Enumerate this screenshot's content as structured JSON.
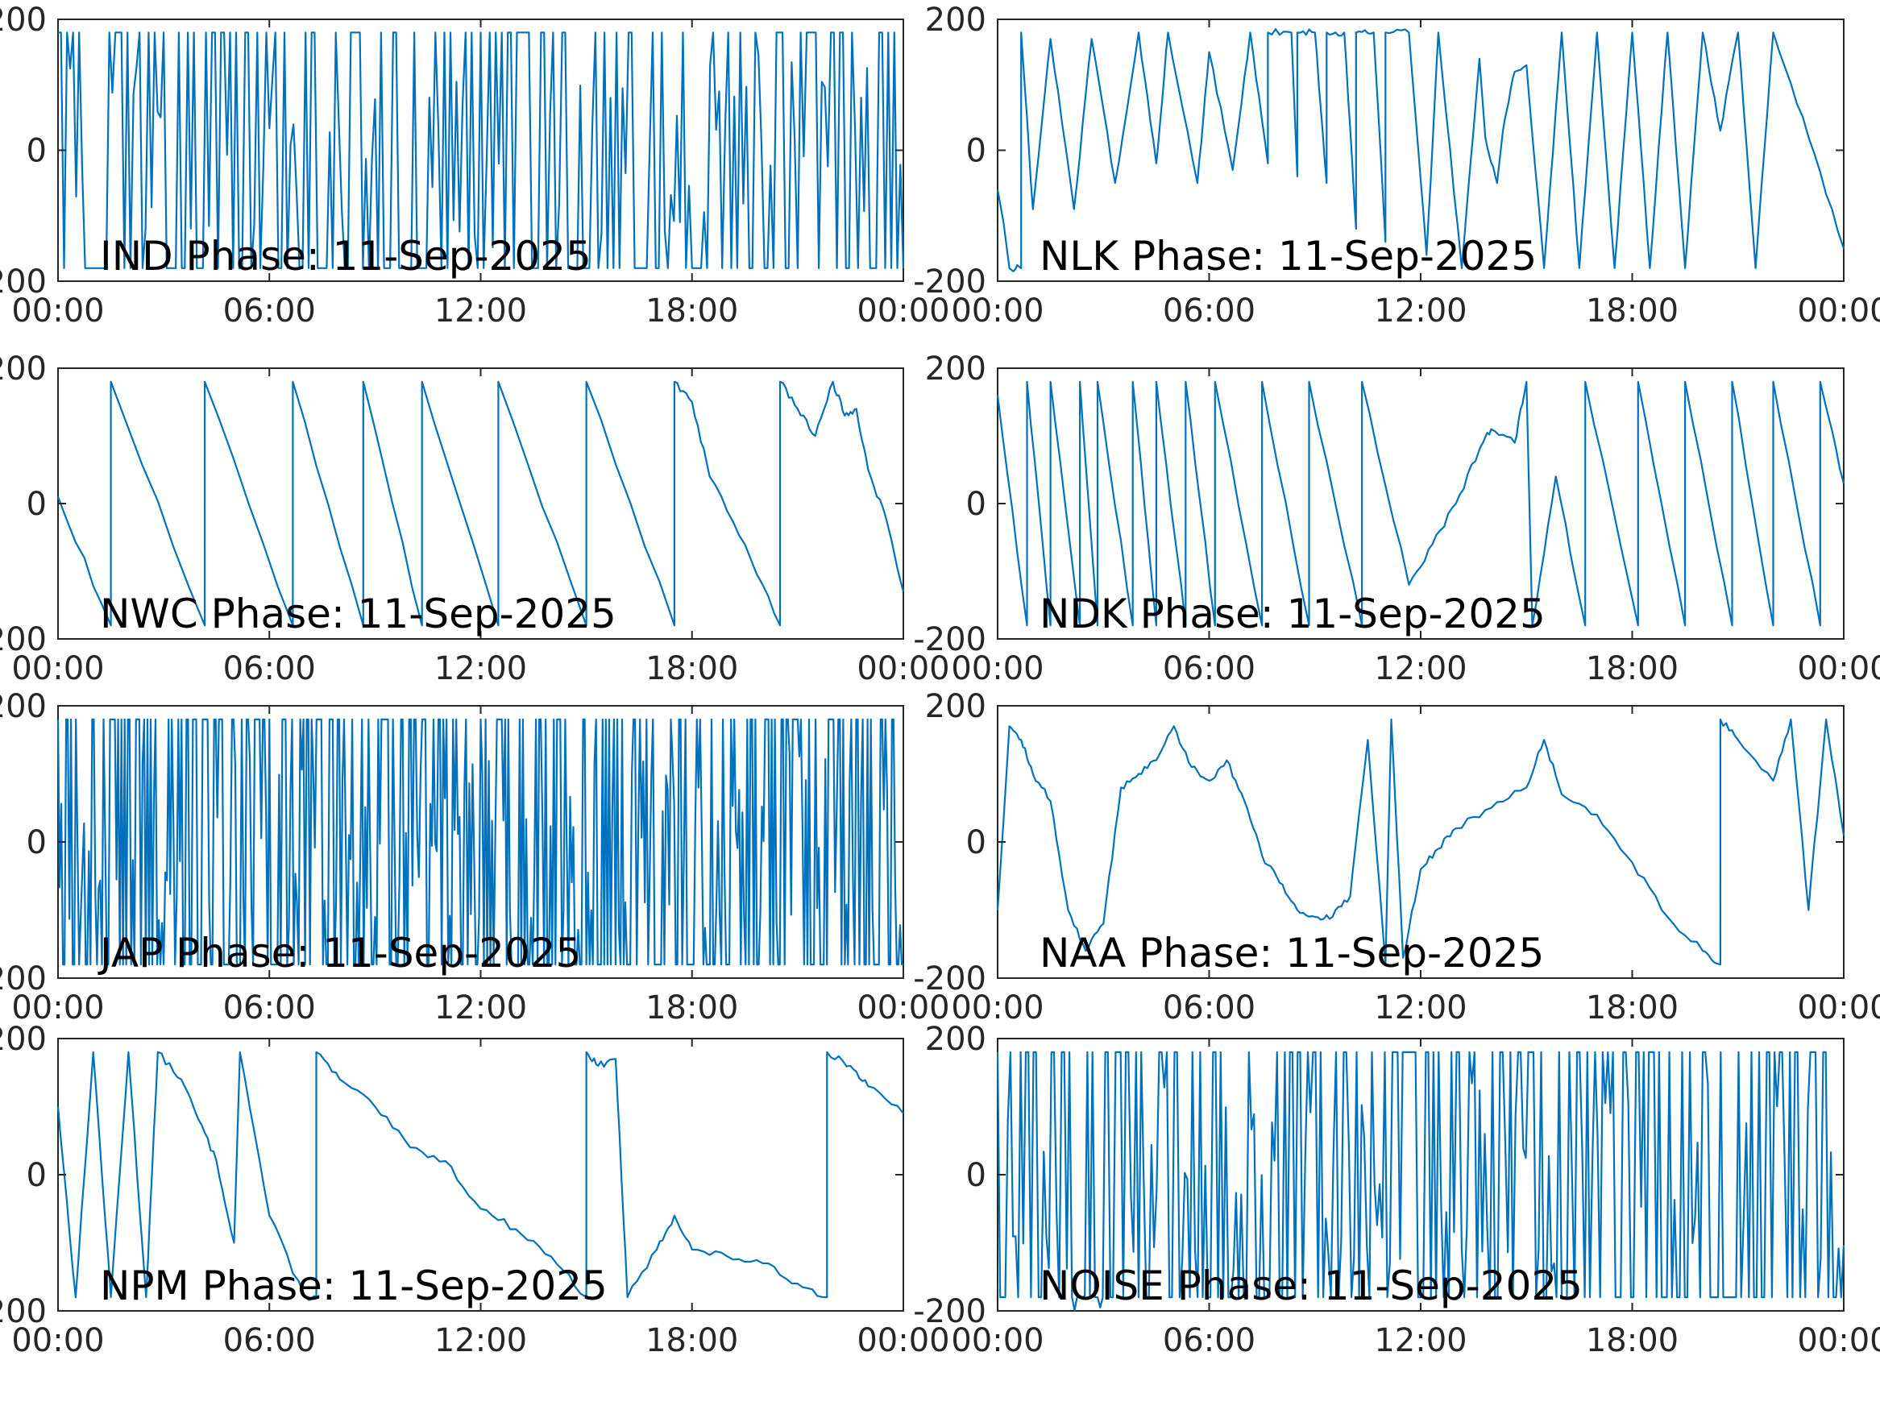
{
  "figure": {
    "series_color": "#0072bd",
    "axis_color": "#262626"
  },
  "chart_data": [
    {
      "type": "line",
      "title": "IND Phase: 11-Sep-2025",
      "xlabel": "",
      "ylabel": "",
      "xlim": [
        "00:00",
        "24:00"
      ],
      "ylim": [
        -200,
        200
      ],
      "xticks": [
        "00:00",
        "06:00",
        "12:00",
        "18:00",
        "00:00"
      ],
      "yticks": [
        "200",
        "0",
        "-200"
      ],
      "grid": false,
      "pattern": "noise",
      "density": 280,
      "seed": 11,
      "x": [
        "00:00",
        "02:00",
        "04:00",
        "06:00",
        "08:00",
        "10:00",
        "12:00",
        "14:00",
        "16:00",
        "18:00",
        "20:00",
        "22:00",
        "24:00"
      ],
      "y": [
        40,
        10,
        -30,
        20,
        -10,
        30,
        -40,
        0,
        -20,
        10,
        20,
        60,
        -10
      ]
    },
    {
      "type": "line",
      "title": "NLK Phase: 11-Sep-2025",
      "xlabel": "",
      "ylabel": "",
      "xlim": [
        "00:00",
        "24:00"
      ],
      "ylim": [
        -200,
        200
      ],
      "xticks": [
        "00:00",
        "06:00",
        "12:00",
        "18:00",
        "00:00"
      ],
      "yticks": [
        "200",
        "0",
        "-200"
      ],
      "grid": false,
      "pattern": "sawtooth",
      "x": [
        "00:00",
        "00:10",
        "00:20",
        "00:40",
        "00:40",
        "01:00",
        "01:30",
        "01:30",
        "02:10",
        "02:40",
        "02:40",
        "03:20",
        "04:00",
        "04:00",
        "04:30",
        "04:50",
        "04:50",
        "05:40",
        "06:00",
        "06:00",
        "06:40",
        "07:10",
        "07:10",
        "07:40",
        "07:40",
        "08:20",
        "08:30",
        "08:30",
        "09:00",
        "09:20",
        "09:20",
        "09:50",
        "10:10",
        "10:10",
        "10:40",
        "11:00",
        "11:00",
        "11:40",
        "12:10",
        "12:30",
        "12:30",
        "13:10",
        "13:40",
        "13:50",
        "14:10",
        "14:20",
        "14:40",
        "15:00",
        "15:30",
        "16:00",
        "16:30",
        "17:00",
        "17:30",
        "18:00",
        "18:30",
        "19:00",
        "19:30",
        "20:00",
        "20:30",
        "21:00",
        "21:30",
        "22:00",
        "22:00",
        "23:00",
        "24:00"
      ],
      "y": [
        -60,
        -110,
        -180,
        -180,
        180,
        -90,
        170,
        170,
        -90,
        170,
        170,
        -50,
        180,
        180,
        -20,
        180,
        180,
        -50,
        150,
        150,
        -30,
        180,
        180,
        -20,
        180,
        180,
        -40,
        180,
        180,
        -50,
        180,
        180,
        -120,
        180,
        180,
        -140,
        180,
        180,
        -160,
        180,
        180,
        -180,
        140,
        20,
        -50,
        30,
        120,
        130,
        -180,
        180,
        -180,
        180,
        -180,
        180,
        -180,
        180,
        -180,
        180,
        30,
        180,
        -180,
        180,
        180,
        20,
        -150
      ]
    },
    {
      "type": "line",
      "title": "NWC Phase: 11-Sep-2025",
      "xlabel": "",
      "ylabel": "",
      "xlim": [
        "00:00",
        "24:00"
      ],
      "ylim": [
        -200,
        200
      ],
      "xticks": [
        "00:00",
        "06:00",
        "12:00",
        "18:00",
        "00:00"
      ],
      "yticks": [
        "200",
        "0",
        "-200"
      ],
      "grid": false,
      "pattern": "sawtooth",
      "x": [
        "00:00",
        "01:30",
        "01:30",
        "01:30",
        "04:10",
        "04:10",
        "06:40",
        "06:40",
        "08:40",
        "08:40",
        "10:20",
        "10:20",
        "12:30",
        "12:30",
        "15:00",
        "15:00",
        "17:30",
        "17:30",
        "18:00",
        "18:30",
        "19:30",
        "20:30",
        "20:30",
        "20:30",
        "21:00",
        "21:30",
        "22:00",
        "22:20",
        "22:40",
        "23:00",
        "23:30",
        "24:00"
      ],
      "y": [
        10,
        -180,
        -180,
        180,
        -180,
        180,
        -180,
        180,
        -180,
        180,
        -180,
        180,
        -180,
        180,
        -180,
        180,
        -180,
        180,
        150,
        40,
        -60,
        -180,
        180,
        180,
        140,
        100,
        180,
        130,
        140,
        50,
        -20,
        -130
      ]
    },
    {
      "type": "line",
      "title": "NDK Phase: 11-Sep-2025",
      "xlabel": "",
      "ylabel": "",
      "xlim": [
        "00:00",
        "24:00"
      ],
      "ylim": [
        -200,
        200
      ],
      "xticks": [
        "00:00",
        "06:00",
        "12:00",
        "18:00",
        "00:00"
      ],
      "yticks": [
        "200",
        "0",
        "-200"
      ],
      "grid": false,
      "pattern": "sawtooth",
      "x": [
        "00:00",
        "00:50",
        "00:50",
        "01:30",
        "01:30",
        "02:20",
        "02:20",
        "02:50",
        "02:50",
        "03:50",
        "03:50",
        "04:30",
        "04:30",
        "05:20",
        "05:20",
        "06:10",
        "06:10",
        "07:30",
        "07:30",
        "08:50",
        "08:50",
        "10:20",
        "10:20",
        "11:40",
        "12:20",
        "13:00",
        "13:40",
        "14:00",
        "14:40",
        "15:00",
        "15:10",
        "15:50",
        "16:40",
        "16:40",
        "18:10",
        "18:10",
        "19:30",
        "19:30",
        "20:50",
        "20:50",
        "22:00",
        "22:00",
        "23:20",
        "23:20",
        "24:00"
      ],
      "y": [
        160,
        -180,
        180,
        -180,
        180,
        -180,
        180,
        -180,
        180,
        -180,
        180,
        -180,
        180,
        -180,
        180,
        -180,
        180,
        -180,
        180,
        -180,
        180,
        -180,
        180,
        -120,
        -60,
        0,
        80,
        110,
        90,
        180,
        -180,
        40,
        -180,
        180,
        -180,
        180,
        -180,
        180,
        -180,
        180,
        -180,
        180,
        -180,
        180,
        30
      ]
    },
    {
      "type": "line",
      "title": "JAP Phase: 11-Sep-2025",
      "xlabel": "",
      "ylabel": "",
      "xlim": [
        "00:00",
        "24:00"
      ],
      "ylim": [
        -200,
        200
      ],
      "xticks": [
        "00:00",
        "06:00",
        "12:00",
        "18:00",
        "00:00"
      ],
      "yticks": [
        "200",
        "0",
        "-200"
      ],
      "grid": false,
      "pattern": "noise",
      "density": 520,
      "seed": 5,
      "x": [
        "00:00",
        "03:00",
        "06:00",
        "09:00",
        "12:00",
        "15:00",
        "18:00",
        "21:00",
        "24:00"
      ],
      "y": [
        0,
        0,
        0,
        0,
        0,
        0,
        0,
        0,
        0
      ]
    },
    {
      "type": "line",
      "title": "NAA Phase: 11-Sep-2025",
      "xlabel": "",
      "ylabel": "",
      "xlim": [
        "00:00",
        "24:00"
      ],
      "ylim": [
        -200,
        200
      ],
      "xticks": [
        "00:00",
        "06:00",
        "12:00",
        "18:00",
        "00:00"
      ],
      "yticks": [
        "200",
        "0",
        "-200"
      ],
      "grid": false,
      "pattern": "sawtooth",
      "x": [
        "00:00",
        "00:20",
        "00:40",
        "01:00",
        "01:30",
        "02:00",
        "02:30",
        "03:00",
        "03:30",
        "04:00",
        "04:30",
        "05:00",
        "05:30",
        "06:00",
        "06:30",
        "07:00",
        "07:30",
        "08:00",
        "08:30",
        "09:00",
        "09:30",
        "10:00",
        "10:30",
        "11:00",
        "11:10",
        "11:30",
        "12:00",
        "12:30",
        "13:00",
        "14:00",
        "15:00",
        "15:30",
        "16:00",
        "17:00",
        "18:00",
        "19:00",
        "20:00",
        "20:30",
        "20:30",
        "21:00",
        "22:00",
        "22:30",
        "23:00",
        "23:30",
        "24:00"
      ],
      "y": [
        -100,
        170,
        150,
        100,
        60,
        -100,
        -160,
        -120,
        80,
        100,
        120,
        170,
        110,
        90,
        120,
        60,
        -20,
        -60,
        -100,
        -110,
        -110,
        -80,
        150,
        -180,
        180,
        -170,
        -40,
        -10,
        20,
        50,
        80,
        150,
        70,
        40,
        -30,
        -110,
        -160,
        -180,
        180,
        150,
        90,
        180,
        -100,
        180,
        10
      ]
    },
    {
      "type": "line",
      "title": "NPM Phase: 11-Sep-2025",
      "xlabel": "",
      "ylabel": "",
      "xlim": [
        "00:00",
        "24:00"
      ],
      "ylim": [
        -200,
        200
      ],
      "xticks": [
        "00:00",
        "06:00",
        "12:00",
        "18:00",
        "00:00"
      ],
      "yticks": [
        "200",
        "0",
        "-200"
      ],
      "grid": false,
      "pattern": "sawtooth",
      "x": [
        "00:00",
        "00:30",
        "01:00",
        "01:30",
        "02:00",
        "02:30",
        "02:50",
        "03:30",
        "04:00",
        "04:30",
        "05:00",
        "05:10",
        "06:00",
        "07:00",
        "07:20",
        "07:20",
        "08:00",
        "09:00",
        "10:00",
        "11:00",
        "12:00",
        "13:00",
        "14:00",
        "15:00",
        "15:00",
        "15:20",
        "15:50",
        "16:10",
        "17:00",
        "17:30",
        "18:00",
        "19:00",
        "20:00",
        "21:00",
        "21:50",
        "21:50",
        "22:30",
        "23:00",
        "24:00"
      ],
      "y": [
        100,
        -180,
        180,
        -180,
        180,
        -180,
        180,
        140,
        80,
        20,
        -100,
        180,
        -60,
        -180,
        -180,
        180,
        140,
        100,
        40,
        20,
        -50,
        -80,
        -120,
        -180,
        180,
        160,
        170,
        -180,
        -110,
        -60,
        -110,
        -120,
        -130,
        -160,
        -180,
        180,
        160,
        130,
        90
      ]
    },
    {
      "type": "line",
      "title": "NOISE Phase: 11-Sep-2025",
      "xlabel": "",
      "ylabel": "",
      "xlim": [
        "00:00",
        "24:00"
      ],
      "ylim": [
        -200,
        200
      ],
      "xticks": [
        "00:00",
        "06:00",
        "12:00",
        "18:00",
        "00:00"
      ],
      "yticks": [
        "200",
        "0",
        "-200"
      ],
      "grid": false,
      "pattern": "noise",
      "density": 330,
      "seed": 23,
      "x": [
        "00:00",
        "01:00",
        "02:00",
        "03:00",
        "04:00",
        "06:00",
        "08:00",
        "10:00",
        "12:00",
        "14:00",
        "16:00",
        "18:00",
        "20:00",
        "22:00",
        "24:00"
      ],
      "y": [
        20,
        -60,
        -90,
        -80,
        10,
        -20,
        10,
        -30,
        0,
        10,
        -20,
        0,
        20,
        -10,
        0
      ]
    }
  ]
}
